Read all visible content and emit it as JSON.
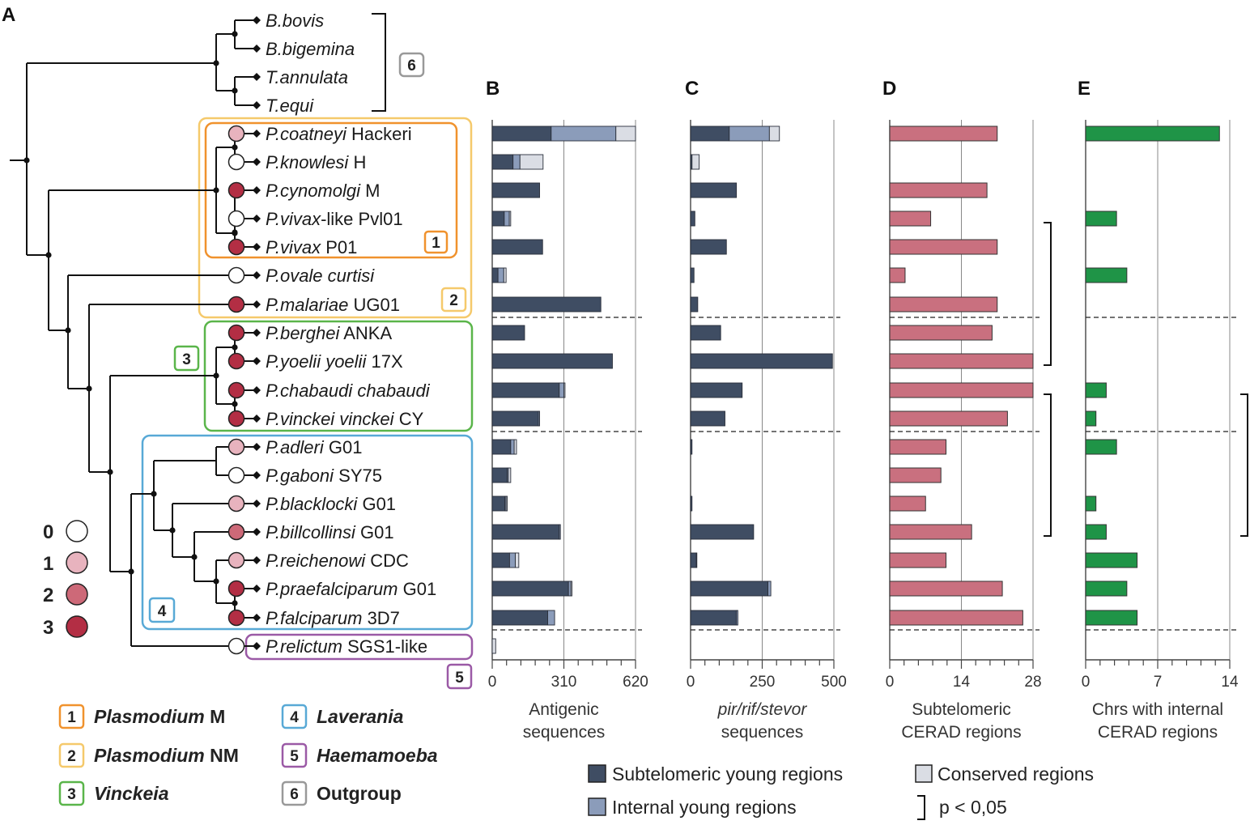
{
  "panels": {
    "a": "A",
    "b": "B",
    "c": "C",
    "d": "D",
    "e": "E"
  },
  "species": [
    {
      "genus": "B.",
      "name": "bovis",
      "strain": "",
      "score": null
    },
    {
      "genus": "B.",
      "name": "bigemina",
      "strain": "",
      "score": null
    },
    {
      "genus": "T.",
      "name": "annulata",
      "strain": "",
      "score": null
    },
    {
      "genus": "T.",
      "name": "equi",
      "strain": "",
      "score": null
    },
    {
      "genus": "P.",
      "name": "coatneyi",
      "strain": "Hackeri",
      "score": 1
    },
    {
      "genus": "P.",
      "name": "knowlesi",
      "strain": "H",
      "score": 0
    },
    {
      "genus": "P.",
      "name": "cynomolgi",
      "strain": "M",
      "score": 3
    },
    {
      "genus": "P.",
      "name": "vivax",
      "strain": "-like Pvl01",
      "score": 0
    },
    {
      "genus": "P.",
      "name": "vivax",
      "strain": "P01",
      "score": 3
    },
    {
      "genus": "P.",
      "name": "ovale curtisi",
      "strain": "",
      "score": 0
    },
    {
      "genus": "P.",
      "name": "malariae",
      "strain": "UG01",
      "score": 3
    },
    {
      "genus": "P.",
      "name": "berghei",
      "strain": "ANKA",
      "score": 3
    },
    {
      "genus": "P.",
      "name": "yoelii yoelii",
      "strain": "17X",
      "score": 3
    },
    {
      "genus": "P.",
      "name": "chabaudi chabaudi",
      "strain": "",
      "score": 3
    },
    {
      "genus": "P.",
      "name": "vinckei vinckei",
      "strain": "CY",
      "score": 3
    },
    {
      "genus": "P.",
      "name": "adleri",
      "strain": "G01",
      "score": 1
    },
    {
      "genus": "P.",
      "name": "gaboni",
      "strain": "SY75",
      "score": 0
    },
    {
      "genus": "P.",
      "name": "blacklocki",
      "strain": "G01",
      "score": 1
    },
    {
      "genus": "P.",
      "name": "billcollinsi",
      "strain": "G01",
      "score": 2
    },
    {
      "genus": "P.",
      "name": "reichenowi",
      "strain": "CDC",
      "score": 1
    },
    {
      "genus": "P.",
      "name": "praefalciparum",
      "strain": "G01",
      "score": 3
    },
    {
      "genus": "P.",
      "name": "falciparum",
      "strain": "3D7",
      "score": 3
    },
    {
      "genus": "P.",
      "name": "relictum",
      "strain": "SGS1-like",
      "score": 0
    }
  ],
  "group_badges": [
    "1",
    "2",
    "3",
    "4",
    "5",
    "6"
  ],
  "groups": [
    {
      "num": "1",
      "label": "Plasmodium",
      "suffix": " M",
      "italic": true
    },
    {
      "num": "2",
      "label": "Plasmodium",
      "suffix": " NM",
      "italic": true
    },
    {
      "num": "3",
      "label": "Vinckeia",
      "suffix": "",
      "italic": true
    },
    {
      "num": "4",
      "label": "Laverania",
      "suffix": "",
      "italic": true
    },
    {
      "num": "5",
      "label": "Haemamoeba",
      "suffix": "",
      "italic": true
    },
    {
      "num": "6",
      "label": "Outgroup",
      "suffix": "",
      "italic": false
    }
  ],
  "score_legend": [
    "0",
    "1",
    "2",
    "3"
  ],
  "legend": {
    "subtelomeric": "Subtelomeric young regions",
    "internal": "Internal young regions",
    "conserved": "Conserved regions",
    "pvalue": "p < 0,05"
  },
  "colors": {
    "subtelomeric": "#3f4d63",
    "internal": "#8b9cba",
    "conserved": "#dadde4",
    "cerad_subtel": "#c9707f",
    "cerad_internal": "#1f9447",
    "score0": "#ffffff",
    "score1": "#e8b3be",
    "score2": "#cd6978",
    "score3": "#b32e44",
    "group1": "#f0922d",
    "group2": "#f5c96b",
    "group3": "#5ab54a",
    "group4": "#58a9d6",
    "group5": "#9b5aa6",
    "group6": "#999999"
  },
  "chart_data": [
    {
      "panel": "B",
      "type": "bar",
      "orientation": "horizontal",
      "stacked": true,
      "xlabel": [
        "Antigenic",
        "sequences"
      ],
      "xlim": [
        0,
        620
      ],
      "xticks": [
        "0",
        "310",
        "620"
      ],
      "categories": [
        "P. coatneyi Hackeri",
        "P. knowlesi H",
        "P. cynomolgi M",
        "P. vivax-like Pvl01",
        "P. vivax P01",
        "P. ovale curtisi",
        "P. malariae UG01",
        "P. berghei ANKA",
        "P. yoelii yoelii 17X",
        "P. chabaudi chabaudi",
        "P. vinckei vinckei CY",
        "P. adleri G01",
        "P. gaboni SY75",
        "P. blacklocki G01",
        "P. billcollinsi G01",
        "P. reichenowi CDC",
        "P. praefalciparum G01",
        "P. falciparum 3D7",
        "P. relictum SGS1-like"
      ],
      "series": [
        {
          "name": "Subtelomeric young regions",
          "values": [
            255,
            90,
            205,
            52,
            218,
            25,
            470,
            140,
            520,
            290,
            200,
            80,
            65,
            55,
            290,
            75,
            330,
            240,
            0
          ]
        },
        {
          "name": "Internal young regions",
          "values": [
            280,
            30,
            0,
            22,
            0,
            25,
            0,
            0,
            0,
            20,
            5,
            15,
            5,
            5,
            5,
            25,
            10,
            30,
            0
          ]
        },
        {
          "name": "Conserved regions",
          "values": [
            85,
            100,
            0,
            6,
            0,
            10,
            0,
            0,
            0,
            5,
            0,
            10,
            10,
            5,
            0,
            15,
            5,
            0,
            15
          ]
        }
      ],
      "significance": []
    },
    {
      "panel": "C",
      "type": "bar",
      "orientation": "horizontal",
      "stacked": true,
      "xlabel": [
        "pir/rif/stevor",
        "sequences"
      ],
      "xlim": [
        0,
        500
      ],
      "xticks": [
        "0",
        "250",
        "500"
      ],
      "categories": [
        "P. coatneyi Hackeri",
        "P. knowlesi H",
        "P. cynomolgi M",
        "P. vivax-like Pvl01",
        "P. vivax P01",
        "P. ovale curtisi",
        "P. malariae UG01",
        "P. berghei ANKA",
        "P. yoelii yoelii 17X",
        "P. chabaudi chabaudi",
        "P. vinckei vinckei CY",
        "P. adleri G01",
        "P. gaboni SY75",
        "P. blacklocki G01",
        "P. billcollinsi G01",
        "P. reichenowi CDC",
        "P. praefalciparum G01",
        "P. falciparum 3D7",
        "P. relictum SGS1-like"
      ],
      "series": [
        {
          "name": "Subtelomeric young regions",
          "values": [
            135,
            5,
            160,
            15,
            125,
            12,
            25,
            105,
            495,
            180,
            120,
            5,
            0,
            5,
            220,
            20,
            270,
            160,
            0
          ]
        },
        {
          "name": "Internal young regions",
          "values": [
            140,
            0,
            0,
            0,
            0,
            0,
            0,
            0,
            0,
            0,
            0,
            0,
            0,
            0,
            0,
            2,
            10,
            5,
            0
          ]
        },
        {
          "name": "Conserved regions",
          "values": [
            35,
            25,
            0,
            0,
            0,
            0,
            0,
            0,
            0,
            0,
            0,
            0,
            0,
            0,
            0,
            0,
            0,
            0,
            0
          ]
        }
      ],
      "significance": []
    },
    {
      "panel": "D",
      "type": "bar",
      "orientation": "horizontal",
      "xlabel": [
        "Subtelomeric",
        "CERAD regions"
      ],
      "xlim": [
        0,
        28
      ],
      "xticks": [
        "0",
        "14",
        "28"
      ],
      "categories": [
        "P. coatneyi Hackeri",
        "P. knowlesi H",
        "P. cynomolgi M",
        "P. vivax-like Pvl01",
        "P. vivax P01",
        "P. ovale curtisi",
        "P. malariae UG01",
        "P. berghei ANKA",
        "P. yoelii yoelii 17X",
        "P. chabaudi chabaudi",
        "P. vinckei vinckei CY",
        "P. adleri G01",
        "P. gaboni SY75",
        "P. blacklocki G01",
        "P. billcollinsi G01",
        "P. reichenowi CDC",
        "P. praefalciparum G01",
        "P. falciparum 3D7",
        "P. relictum SGS1-like"
      ],
      "values": [
        21,
        0,
        19,
        8,
        21,
        3,
        21,
        20,
        28,
        28,
        23,
        11,
        10,
        7,
        16,
        11,
        22,
        26,
        0
      ],
      "significance": [
        [
          3,
          8
        ],
        [
          9,
          14
        ]
      ]
    },
    {
      "panel": "E",
      "type": "bar",
      "orientation": "horizontal",
      "xlabel": [
        "Chrs with internal",
        "CERAD regions"
      ],
      "xlim": [
        0,
        14
      ],
      "xticks": [
        "0",
        "7",
        "14"
      ],
      "categories": [
        "P. coatneyi Hackeri",
        "P. knowlesi H",
        "P. cynomolgi M",
        "P. vivax-like Pvl01",
        "P. vivax P01",
        "P. ovale curtisi",
        "P. malariae UG01",
        "P. berghei ANKA",
        "P. yoelii yoelii 17X",
        "P. chabaudi chabaudi",
        "P. vinckei vinckei CY",
        "P. adleri G01",
        "P. gaboni SY75",
        "P. blacklocki G01",
        "P. billcollinsi G01",
        "P. reichenowi CDC",
        "P. praefalciparum G01",
        "P. falciparum 3D7",
        "P. relictum SGS1-like"
      ],
      "values": [
        13,
        0,
        0,
        3,
        0,
        4,
        0,
        0,
        0,
        2,
        1,
        3,
        0,
        1,
        2,
        5,
        4,
        5,
        0
      ],
      "significance": [
        [
          9,
          14
        ]
      ]
    }
  ]
}
